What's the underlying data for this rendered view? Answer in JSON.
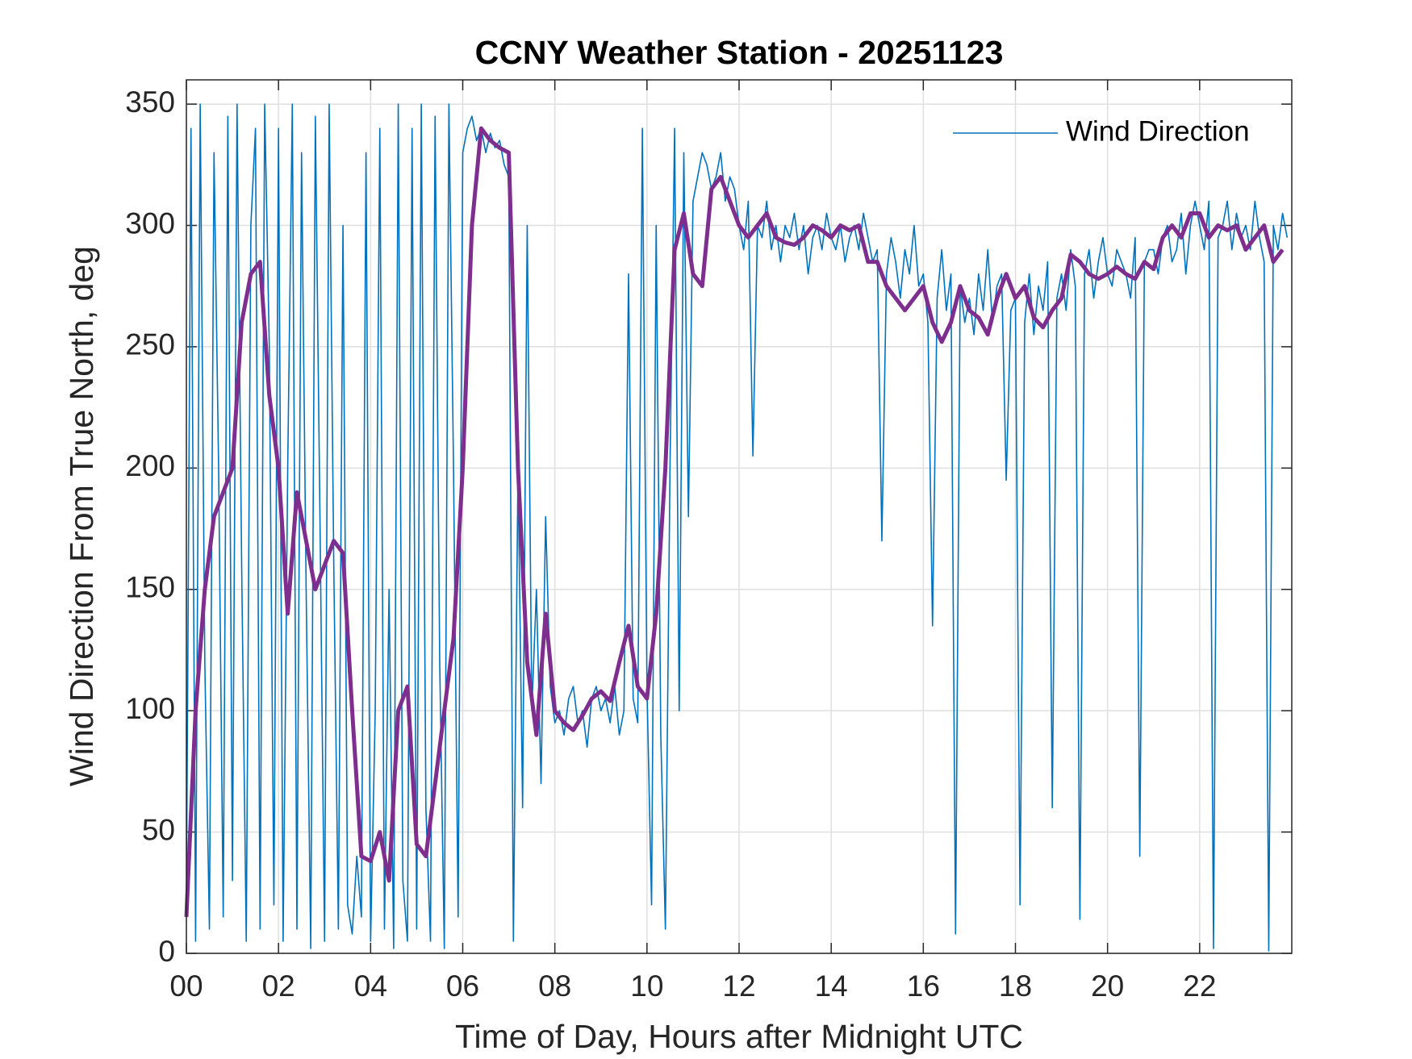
{
  "chart_data": {
    "type": "line",
    "title": "CCNY Weather Station - 20251123",
    "x_label": "Time of Day, Hours after Midnight UTC",
    "y_label": "Wind Direction From True North, deg",
    "xlim": [
      0,
      24
    ],
    "ylim": [
      0,
      360
    ],
    "xticks": [
      {
        "value": 0,
        "label": "00"
      },
      {
        "value": 2,
        "label": "02"
      },
      {
        "value": 4,
        "label": "04"
      },
      {
        "value": 6,
        "label": "06"
      },
      {
        "value": 8,
        "label": "08"
      },
      10,
      12,
      14,
      16,
      18,
      20,
      22
    ],
    "yticks": [
      0,
      50,
      100,
      150,
      200,
      250,
      300,
      350
    ],
    "grid": true,
    "legend": "northeast",
    "series": [
      {
        "name": "Wind Direction",
        "color": "#0072bd",
        "x": [
          0,
          0.1,
          0.2,
          0.3,
          0.4,
          0.5,
          0.6,
          0.7,
          0.8,
          0.9,
          1,
          1.1,
          1.2,
          1.3,
          1.4,
          1.5,
          1.6,
          1.7,
          1.8,
          1.9,
          2,
          2.1,
          2.2,
          2.3,
          2.4,
          2.5,
          2.6,
          2.7,
          2.8,
          2.9,
          3,
          3.1,
          3.2,
          3.3,
          3.4,
          3.5,
          3.6,
          3.7,
          3.8,
          3.9,
          4,
          4.1,
          4.2,
          4.3,
          4.4,
          4.5,
          4.6,
          4.7,
          4.8,
          4.9,
          5,
          5.1,
          5.2,
          5.3,
          5.4,
          5.5,
          5.6,
          5.7,
          5.8,
          5.9,
          6,
          6.1,
          6.2,
          6.3,
          6.4,
          6.5,
          6.6,
          6.7,
          6.8,
          6.9,
          7,
          7.1,
          7.2,
          7.3,
          7.4,
          7.5,
          7.6,
          7.7,
          7.8,
          7.9,
          8,
          8.1,
          8.2,
          8.3,
          8.4,
          8.5,
          8.6,
          8.7,
          8.8,
          8.9,
          9,
          9.1,
          9.2,
          9.3,
          9.4,
          9.5,
          9.6,
          9.7,
          9.8,
          9.9,
          10,
          10.1,
          10.2,
          10.3,
          10.4,
          10.5,
          10.6,
          10.7,
          10.8,
          10.9,
          11,
          11.1,
          11.2,
          11.3,
          11.4,
          11.5,
          11.6,
          11.7,
          11.8,
          11.9,
          12,
          12.1,
          12.2,
          12.3,
          12.4,
          12.5,
          12.6,
          12.7,
          12.8,
          12.9,
          13,
          13.1,
          13.2,
          13.3,
          13.4,
          13.5,
          13.6,
          13.7,
          13.8,
          13.9,
          14,
          14.1,
          14.2,
          14.3,
          14.4,
          14.5,
          14.6,
          14.7,
          14.8,
          14.9,
          15,
          15.1,
          15.2,
          15.3,
          15.4,
          15.5,
          15.6,
          15.7,
          15.8,
          15.9,
          16,
          16.1,
          16.2,
          16.3,
          16.4,
          16.5,
          16.6,
          16.7,
          16.8,
          16.9,
          17,
          17.1,
          17.2,
          17.3,
          17.4,
          17.5,
          17.6,
          17.7,
          17.8,
          17.9,
          18,
          18.1,
          18.2,
          18.3,
          18.4,
          18.5,
          18.6,
          18.7,
          18.8,
          18.9,
          19,
          19.1,
          19.2,
          19.3,
          19.4,
          19.5,
          19.6,
          19.7,
          19.8,
          19.9,
          20,
          20.1,
          20.2,
          20.3,
          20.4,
          20.5,
          20.6,
          20.7,
          20.8,
          20.9,
          21,
          21.1,
          21.2,
          21.3,
          21.4,
          21.5,
          21.6,
          21.7,
          21.8,
          21.9,
          22,
          22.1,
          22.2,
          22.3,
          22.4,
          22.5,
          22.6,
          22.7,
          22.8,
          22.9,
          23,
          23.1,
          23.2,
          23.3,
          23.4,
          23.5,
          23.6,
          23.7,
          23.8,
          23.9
        ],
        "values": [
          20,
          340,
          5,
          350,
          120,
          10,
          330,
          200,
          15,
          345,
          30,
          350,
          160,
          5,
          300,
          340,
          10,
          350,
          250,
          20,
          340,
          5,
          200,
          350,
          10,
          330,
          150,
          2,
          345,
          180,
          5,
          350,
          160,
          10,
          300,
          20,
          8,
          40,
          15,
          330,
          5,
          100,
          340,
          10,
          150,
          2,
          350,
          30,
          5,
          340,
          10,
          350,
          60,
          5,
          345,
          120,
          2,
          350,
          200,
          15,
          330,
          340,
          345,
          335,
          340,
          330,
          338,
          332,
          335,
          325,
          320,
          5,
          200,
          60,
          300,
          100,
          150,
          70,
          180,
          110,
          95,
          100,
          90,
          105,
          110,
          95,
          100,
          85,
          105,
          110,
          100,
          105,
          95,
          110,
          90,
          100,
          280,
          105,
          95,
          340,
          110,
          20,
          300,
          90,
          10,
          200,
          340,
          100,
          330,
          180,
          310,
          320,
          330,
          325,
          315,
          320,
          330,
          310,
          320,
          315,
          300,
          290,
          310,
          205,
          300,
          295,
          310,
          290,
          300,
          285,
          300,
          295,
          305,
          290,
          300,
          280,
          295,
          300,
          290,
          305,
          295,
          290,
          300,
          285,
          295,
          300,
          290,
          305,
          295,
          285,
          290,
          170,
          280,
          295,
          285,
          270,
          290,
          280,
          300,
          275,
          280,
          260,
          135,
          270,
          290,
          265,
          280,
          8,
          275,
          260,
          270,
          255,
          280,
          265,
          290,
          260,
          275,
          280,
          195,
          265,
          270,
          20,
          260,
          280,
          255,
          275,
          265,
          285,
          60,
          270,
          280,
          265,
          290,
          275,
          14,
          280,
          290,
          270,
          285,
          295,
          280,
          275,
          290,
          285,
          280,
          270,
          295,
          40,
          285,
          290,
          290,
          280,
          295,
          300,
          285,
          290,
          305,
          280,
          300,
          310,
          300,
          290,
          310,
          2,
          295,
          300,
          310,
          290,
          305,
          295,
          300,
          290,
          310,
          295,
          285,
          1,
          300,
          290,
          305,
          295
        ]
      },
      {
        "color": "#7e2f8e",
        "x": [
          0,
          0.2,
          0.4,
          0.6,
          0.8,
          1,
          1.2,
          1.4,
          1.6,
          1.8,
          2,
          2.2,
          2.4,
          2.6,
          2.8,
          3,
          3.2,
          3.4,
          3.6,
          3.8,
          4,
          4.2,
          4.4,
          4.6,
          4.8,
          5,
          5.2,
          5.4,
          5.6,
          5.8,
          6,
          6.2,
          6.4,
          6.6,
          6.8,
          7,
          7.2,
          7.4,
          7.6,
          7.8,
          8,
          8.2,
          8.4,
          8.6,
          8.8,
          9,
          9.2,
          9.4,
          9.6,
          9.8,
          10,
          10.2,
          10.4,
          10.6,
          10.8,
          11,
          11.2,
          11.4,
          11.6,
          11.8,
          12,
          12.2,
          12.4,
          12.6,
          12.8,
          13,
          13.2,
          13.4,
          13.6,
          13.8,
          14,
          14.2,
          14.4,
          14.6,
          14.8,
          15,
          15.2,
          15.4,
          15.6,
          15.8,
          16,
          16.2,
          16.4,
          16.6,
          16.8,
          17,
          17.2,
          17.4,
          17.6,
          17.8,
          18,
          18.2,
          18.4,
          18.6,
          18.8,
          19,
          19.2,
          19.4,
          19.6,
          19.8,
          20,
          20.2,
          20.4,
          20.6,
          20.8,
          21,
          21.2,
          21.4,
          21.6,
          21.8,
          22,
          22.2,
          22.4,
          22.6,
          22.8,
          23,
          23.2,
          23.4,
          23.6,
          23.8
        ],
        "values": [
          15,
          100,
          150,
          180,
          190,
          200,
          260,
          280,
          285,
          230,
          200,
          140,
          190,
          170,
          150,
          160,
          170,
          165,
          100,
          40,
          38,
          50,
          30,
          100,
          110,
          45,
          40,
          70,
          100,
          130,
          200,
          300,
          340,
          335,
          332,
          330,
          200,
          120,
          90,
          140,
          100,
          95,
          92,
          98,
          105,
          108,
          104,
          120,
          135,
          110,
          105,
          140,
          200,
          290,
          305,
          280,
          275,
          315,
          320,
          310,
          300,
          295,
          300,
          305,
          295,
          293,
          292,
          295,
          300,
          298,
          295,
          300,
          298,
          300,
          285,
          285,
          275,
          270,
          265,
          270,
          275,
          260,
          252,
          260,
          275,
          265,
          262,
          255,
          270,
          280,
          270,
          275,
          262,
          258,
          265,
          270,
          288,
          285,
          280,
          278,
          280,
          283,
          280,
          278,
          285,
          282,
          295,
          300,
          295,
          305,
          305,
          295,
          300,
          298,
          300,
          290,
          295,
          300,
          285,
          290
        ]
      }
    ]
  }
}
